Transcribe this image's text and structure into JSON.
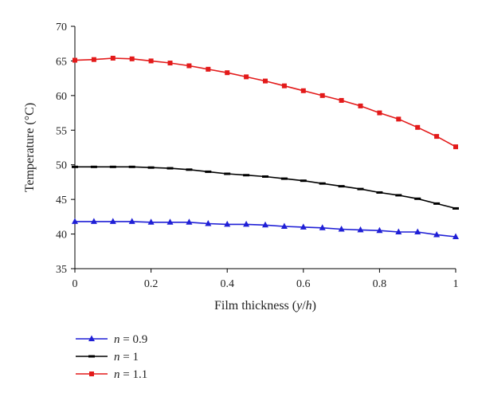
{
  "chart_data": {
    "type": "line",
    "xlabel": "Film thickness (y/h)",
    "xlabel_parts": [
      "Film thickness (",
      "y",
      "/",
      "h",
      ")"
    ],
    "ylabel": "Temperature (°C)",
    "xlim": [
      0,
      1
    ],
    "ylim": [
      35,
      70
    ],
    "xticks": [
      0,
      0.2,
      0.4,
      0.6,
      0.8,
      1
    ],
    "xtick_labels": [
      "0",
      "0.2",
      "0.4",
      "0.6",
      "0.8",
      "1"
    ],
    "yticks": [
      35,
      40,
      45,
      50,
      55,
      60,
      65,
      70
    ],
    "ytick_labels": [
      "35",
      "40",
      "45",
      "50",
      "55",
      "60",
      "65",
      "70"
    ],
    "grid": false,
    "legend_position": "bottom-left",
    "x": [
      0,
      0.05,
      0.1,
      0.15,
      0.2,
      0.25,
      0.3,
      0.35,
      0.4,
      0.45,
      0.5,
      0.55,
      0.6,
      0.65,
      0.7,
      0.75,
      0.8,
      0.85,
      0.9,
      0.95,
      1
    ],
    "series": [
      {
        "name": "n = 0.9",
        "name_parts": [
          "n",
          " = 0.9"
        ],
        "color": "#1f1fd6",
        "marker": "triangle",
        "values": [
          41.8,
          41.8,
          41.8,
          41.8,
          41.7,
          41.7,
          41.7,
          41.5,
          41.4,
          41.4,
          41.3,
          41.1,
          41.0,
          40.9,
          40.7,
          40.6,
          40.5,
          40.3,
          40.3,
          39.9,
          39.6
        ]
      },
      {
        "name": "n = 1",
        "name_parts": [
          "n",
          " = 1"
        ],
        "color": "#000000",
        "marker": "dash",
        "values": [
          49.7,
          49.7,
          49.7,
          49.7,
          49.6,
          49.5,
          49.3,
          49.0,
          48.7,
          48.5,
          48.3,
          48.0,
          47.7,
          47.3,
          46.9,
          46.5,
          46.0,
          45.6,
          45.1,
          44.4,
          43.7
        ]
      },
      {
        "name": "n = 1.1",
        "name_parts": [
          "n",
          " = 1.1"
        ],
        "color": "#e31a1a",
        "marker": "square",
        "values": [
          65.1,
          65.2,
          65.4,
          65.3,
          65.0,
          64.7,
          64.3,
          63.8,
          63.3,
          62.7,
          62.1,
          61.4,
          60.7,
          60.0,
          59.3,
          58.5,
          57.5,
          56.6,
          55.4,
          54.1,
          52.6
        ]
      }
    ]
  }
}
